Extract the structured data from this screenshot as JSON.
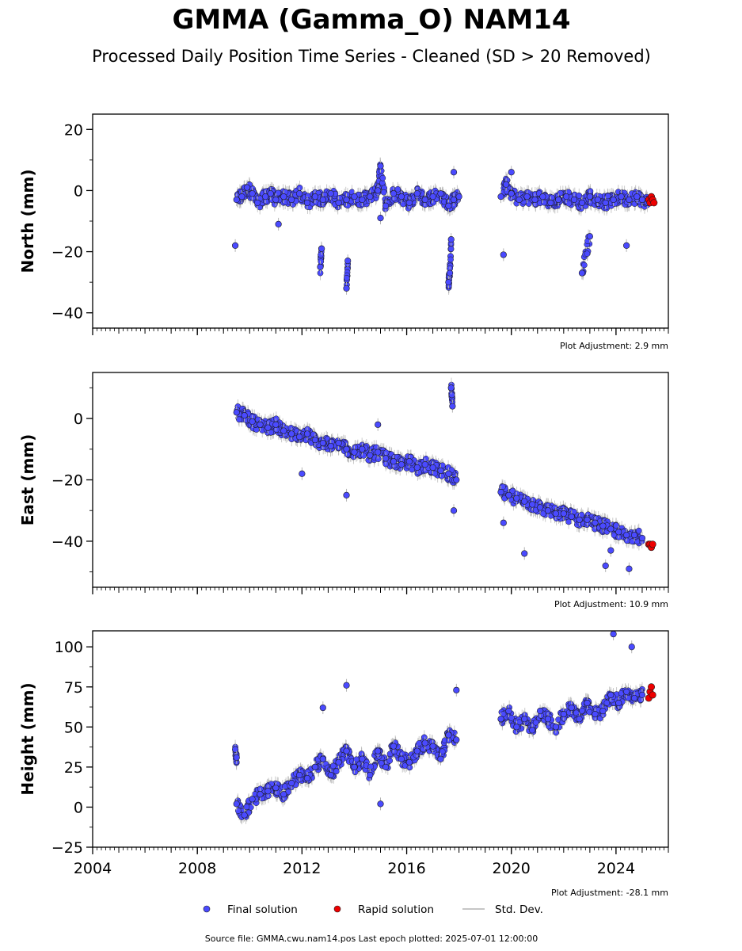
{
  "title": "GMMA (Gamma_O) NAM14",
  "subtitle": "Processed Daily Position Time Series - Cleaned (SD > 20 Removed)",
  "footer": "Source file: GMMA.cwu.nam14.pos  Last epoch plotted: 2025-07-01 12:00:00",
  "legend": {
    "final": "Final solution",
    "rapid": "Rapid solution",
    "sd": "Std. Dev."
  },
  "colors": {
    "final": "#4a4aff",
    "rapid": "#ee0000",
    "sd": "#b4b4b4",
    "edge": "#1a1a1a"
  },
  "chart_data": [
    {
      "type": "scatter",
      "ylabel": "North (mm)",
      "adjustment": "Plot Adjustment: 2.9 mm",
      "xlim": [
        2004.0,
        2026.0
      ],
      "ylim": [
        -45,
        25
      ],
      "yticks": [
        -40,
        -20,
        0,
        20
      ],
      "ytick_labels": [
        "−40",
        "−20",
        "0",
        "20"
      ],
      "xticks": [
        2004,
        2008,
        2012,
        2016,
        2020,
        2024
      ],
      "xtick_labels": [],
      "final": {
        "x": [
          2009.5,
          2009.7,
          2009.9,
          2010.1,
          2010.3,
          2010.6,
          2010.8,
          2011.0,
          2011.3,
          2011.6,
          2011.9,
          2012.2,
          2012.5,
          2012.8,
          2013.1,
          2013.4,
          2013.7,
          2014.0,
          2014.3,
          2014.6,
          2014.9,
          2015.0,
          2015.2,
          2015.5,
          2015.8,
          2016.1,
          2016.4,
          2016.7,
          2017.0,
          2017.3,
          2017.6,
          2017.8,
          2018.0,
          2019.6,
          2019.8,
          2020.0,
          2020.3,
          2020.6,
          2020.9,
          2021.2,
          2021.5,
          2021.8,
          2022.1,
          2022.4,
          2022.7,
          2023.0,
          2023.3,
          2023.6,
          2023.9,
          2024.2,
          2024.5,
          2024.8,
          2025.0,
          2025.2,
          2009.45,
          2012.7,
          2012.75,
          2013.7,
          2013.75,
          2017.6,
          2017.65,
          2017.7,
          2019.7,
          2022.7,
          2023.0,
          2024.4,
          2011.1,
          2015.0,
          2017.8,
          2020.0
        ],
        "y": [
          -3,
          -2,
          1,
          -1,
          -4,
          -2,
          -1,
          -3,
          -2,
          -3,
          -1,
          -4,
          -2,
          -3,
          -1,
          -4,
          -3,
          -2,
          -3,
          -2,
          0,
          8,
          -5,
          -1,
          -2,
          -4,
          -1,
          -3,
          -2,
          -1,
          -5,
          -3,
          -2,
          -2,
          2,
          -1,
          -3,
          -2,
          -3,
          -2,
          -4,
          -3,
          -2,
          -3,
          -4,
          -2,
          -3,
          -4,
          -3,
          -2,
          -3,
          -2,
          -3,
          -4,
          -18,
          -25,
          -19,
          -32,
          -23,
          -30,
          -27,
          -16,
          -21,
          -27,
          -15,
          -18,
          -11,
          -9,
          6,
          6
        ],
        "y_range_note": "Dense daily cluster; approx. core between -8 and +4 mm"
      },
      "rapid": {
        "x": [
          2025.25,
          2025.3,
          2025.35,
          2025.4,
          2025.45
        ],
        "y": [
          -3,
          -4,
          -2,
          -3,
          -4
        ]
      }
    },
    {
      "type": "scatter",
      "ylabel": "East (mm)",
      "adjustment": "Plot Adjustment: 10.9 mm",
      "xlim": [
        2004.0,
        2026.0
      ],
      "ylim": [
        -55,
        15
      ],
      "yticks": [
        -40,
        -20,
        0
      ],
      "ytick_labels": [
        "−40",
        "−20",
        "0"
      ],
      "xticks": [
        2004,
        2008,
        2012,
        2016,
        2020,
        2024
      ],
      "xtick_labels": [],
      "final": {
        "x": [
          2009.5,
          2009.8,
          2010.1,
          2010.4,
          2010.7,
          2011.0,
          2011.3,
          2011.6,
          2011.9,
          2012.2,
          2012.5,
          2012.8,
          2013.1,
          2013.4,
          2013.7,
          2014.0,
          2014.3,
          2014.6,
          2014.9,
          2015.2,
          2015.5,
          2015.8,
          2016.1,
          2016.4,
          2016.7,
          2017.0,
          2017.3,
          2017.6,
          2017.9,
          2019.6,
          2019.9,
          2020.2,
          2020.5,
          2020.8,
          2021.1,
          2021.4,
          2021.7,
          2022.0,
          2022.3,
          2022.6,
          2022.9,
          2023.2,
          2023.5,
          2023.8,
          2024.1,
          2024.4,
          2024.7,
          2025.0,
          2017.7,
          2017.75,
          2012.0,
          2013.7,
          2014.9,
          2017.8,
          2019.7,
          2020.5,
          2023.8,
          2024.5,
          2023.6
        ],
        "y": [
          2,
          1,
          -1,
          -2,
          -3,
          -2,
          -4,
          -5,
          -6,
          -5,
          -7,
          -8,
          -9,
          -8,
          -10,
          -11,
          -10,
          -12,
          -11,
          -13,
          -14,
          -15,
          -14,
          -16,
          -15,
          -16,
          -17,
          -18,
          -20,
          -24,
          -25,
          -26,
          -27,
          -28,
          -29,
          -30,
          -31,
          -31,
          -32,
          -33,
          -33,
          -34,
          -35,
          -36,
          -37,
          -38,
          -38,
          -39,
          10,
          4,
          -18,
          -25,
          -2,
          -30,
          -34,
          -44,
          -43,
          -49,
          -48
        ]
      },
      "rapid": {
        "x": [
          2025.25,
          2025.3,
          2025.35,
          2025.4
        ],
        "y": [
          -41,
          -41,
          -42,
          -41
        ]
      }
    },
    {
      "type": "scatter",
      "ylabel": "Height (mm)",
      "adjustment": "Plot Adjustment: -28.1 mm",
      "xlim": [
        2004.0,
        2026.0
      ],
      "ylim": [
        -25,
        110
      ],
      "yticks": [
        -25,
        0,
        25,
        50,
        75,
        100
      ],
      "ytick_labels": [
        "−25",
        "0",
        "25",
        "50",
        "75",
        "100"
      ],
      "xticks": [
        2004,
        2008,
        2012,
        2016,
        2020,
        2024
      ],
      "xtick_labels": [
        "2004",
        "2008",
        "2012",
        "2016",
        "2020",
        "2024"
      ],
      "final": {
        "x": [
          2009.5,
          2009.8,
          2010.1,
          2010.4,
          2010.7,
          2011.0,
          2011.3,
          2011.6,
          2011.9,
          2012.2,
          2012.5,
          2012.8,
          2013.1,
          2013.4,
          2013.7,
          2014.0,
          2014.3,
          2014.6,
          2014.9,
          2015.2,
          2015.5,
          2015.8,
          2016.1,
          2016.4,
          2016.7,
          2017.0,
          2017.3,
          2017.6,
          2017.9,
          2019.6,
          2019.9,
          2020.2,
          2020.5,
          2020.8,
          2021.1,
          2021.4,
          2021.7,
          2022.0,
          2022.3,
          2022.6,
          2022.9,
          2023.2,
          2023.5,
          2023.8,
          2024.1,
          2024.4,
          2024.7,
          2025.0,
          2009.45,
          2009.5,
          2012.8,
          2013.7,
          2017.9,
          2023.9,
          2024.6,
          2015.0
        ],
        "y": [
          2,
          -5,
          5,
          8,
          10,
          12,
          8,
          15,
          20,
          18,
          25,
          30,
          20,
          28,
          35,
          25,
          30,
          20,
          35,
          25,
          38,
          30,
          28,
          35,
          40,
          38,
          30,
          45,
          42,
          55,
          60,
          50,
          55,
          48,
          60,
          55,
          50,
          58,
          62,
          55,
          65,
          58,
          60,
          70,
          65,
          72,
          68,
          70,
          36,
          31,
          62,
          76,
          73,
          108,
          100,
          2
        ]
      },
      "rapid": {
        "x": [
          2025.25,
          2025.3,
          2025.35,
          2025.4
        ],
        "y": [
          68,
          72,
          75,
          70
        ]
      }
    }
  ]
}
